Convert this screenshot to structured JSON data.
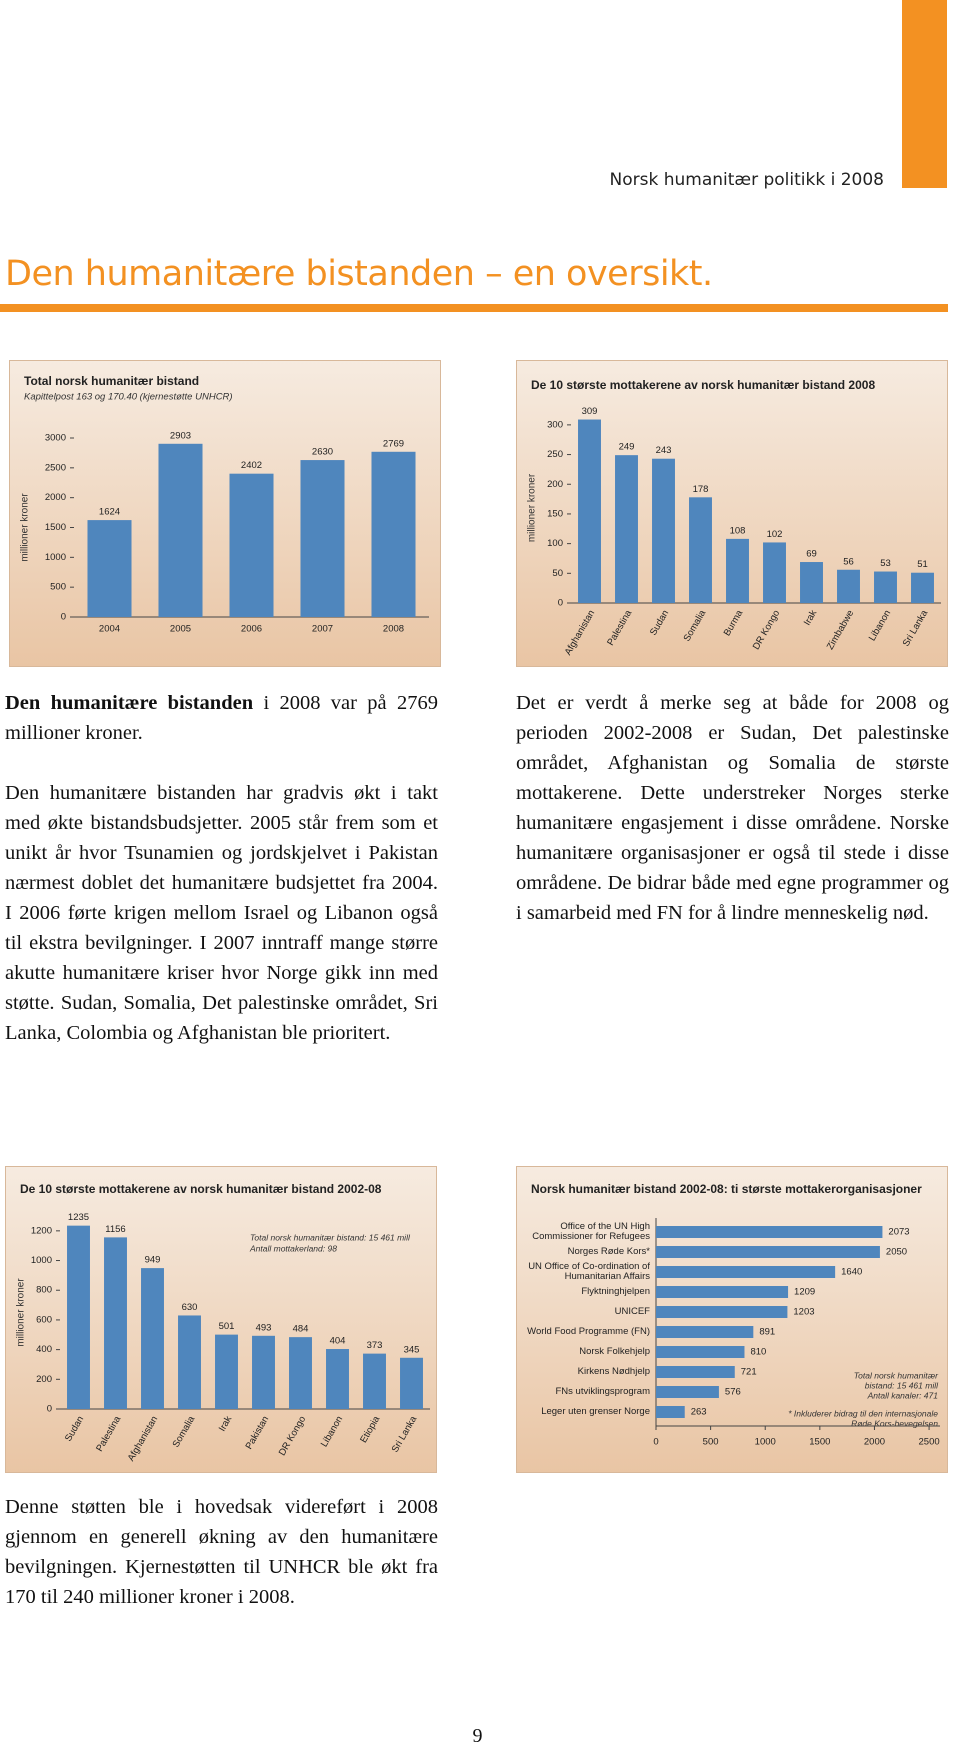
{
  "header": "Norsk humanitær politikk i 2008",
  "page_title": "Den humanitære bistanden – en oversikt.",
  "chart_data": [
    {
      "type": "bar",
      "title": "Total norsk humanitær bistand",
      "subtitle": "Kapittelpost 163 og 170.40 (kjernestøtte UNHCR)",
      "y_label": "millioner kroner",
      "categories": [
        "2004",
        "2005",
        "2006",
        "2007",
        "2008"
      ],
      "values": [
        1624,
        2903,
        2402,
        2630,
        2769
      ],
      "color": "#4f86bd",
      "ylim": [
        0,
        3000
      ],
      "yticks": [
        0,
        500,
        1000,
        1500,
        2000,
        2500,
        3000
      ],
      "grid": false
    },
    {
      "type": "bar",
      "title": "De 10 største mottakerene av norsk humanitær bistand 2008",
      "y_label": "millioner kroner",
      "categories": [
        "Afghanistan",
        "Palestina",
        "Sudan",
        "Somalia",
        "Burma",
        "DR Kongo",
        "Irak",
        "Zimbabwe",
        "Libanon",
        "Sri Lanka"
      ],
      "values": [
        309,
        249,
        243,
        178,
        108,
        102,
        69,
        56,
        53,
        51
      ],
      "color": "#4f86bd",
      "ylim": [
        0,
        320
      ],
      "yticks": [
        0,
        50,
        100,
        150,
        200,
        250,
        300
      ],
      "grid": false
    },
    {
      "type": "bar",
      "title": "De 10 største mottakerene av norsk humanitær bistand 2002-08",
      "y_label": "millioner kroner",
      "categories": [
        "Sudan",
        "Palestina",
        "Afghanistan",
        "Somalia",
        "Irak",
        "Pakistan",
        "DR Kongo",
        "Libanon",
        "Etiopia",
        "Sri Lanka"
      ],
      "values": [
        1235,
        1156,
        949,
        630,
        501,
        493,
        484,
        404,
        373,
        345
      ],
      "color": "#4f86bd",
      "ylim": [
        0,
        1300
      ],
      "yticks": [
        0,
        200,
        400,
        600,
        800,
        1000,
        1200
      ],
      "grid": false,
      "annotations": [
        "Total norsk humanitær bistand: 15 461 mill",
        "Antall mottakerland: 98"
      ]
    },
    {
      "type": "hbar",
      "title": "Norsk humanitær bistand 2002-08: ti største mottakerorganisasjoner",
      "categories": [
        "Office of the UN High Commissioner for Refugees",
        "Norges Røde Kors*",
        "UN Office of Co-ordination of Humanitarian Affairs",
        "Flyktninghjelpen",
        "UNICEF",
        "World Food Programme (FN)",
        "Norsk Folkehjelp",
        "Kirkens Nødhjelp",
        "FNs utviklingsprogram",
        "Leger uten grenser Norge"
      ],
      "values": [
        2073,
        2050,
        1640,
        1209,
        1203,
        891,
        810,
        721,
        576,
        263
      ],
      "color": "#4f86bd",
      "xlim": [
        0,
        2600
      ],
      "xticks": [
        0,
        500,
        1000,
        1500,
        2000,
        2500
      ],
      "grid": false,
      "annotations": [
        "Total norsk humanitær",
        "bistand: 15 461 mill",
        "Antall kanaler: 471",
        "* Inkluderer bidrag til den internasjonale",
        "Røde Kors-bevegelsen"
      ]
    }
  ],
  "left_column": {
    "lead_bold": "Den humanitære bistanden",
    "lead_rest": " i 2008 var på 2769 millioner kroner.",
    "paragraph": "Den humanitære bistanden har gradvis økt i takt med økte bistandsbudsjetter. 2005 står frem som et unikt år hvor Tsunamien og jordskjelvet i Pakistan nærmest doblet det humanitære budsjettet fra 2004. I 2006 førte krigen mellom Israel og Libanon også til ekstra bevilgninger. I 2007 inntraff mange større akutte humanitære kriser hvor Norge gikk inn med støtte. Sudan, Somalia, Det palestinske området, Sri Lanka, Colombia og Afghanistan ble prioritert."
  },
  "right_column": "Det er verdt å merke seg at både for 2008 og perioden 2002-2008 er Sudan, Det palestinske området, Afghanistan og Somalia de største mottakerene. Dette understreker Norges sterke humanitære engasjement i disse områdene. Norske humanitære organisasjoner er også til stede i disse områdene. De bidrar både med egne programmer og i samarbeid med FN for å lindre menneskelig nød.",
  "bottom_paragraph": "Denne støtten ble i hovedsak videreført i 2008 gjennom en generell økning av den humanitære bevilgningen. Kjernestøtten til UNHCR ble økt fra 170 til 240 millioner kroner i 2008.",
  "page_number": "9"
}
